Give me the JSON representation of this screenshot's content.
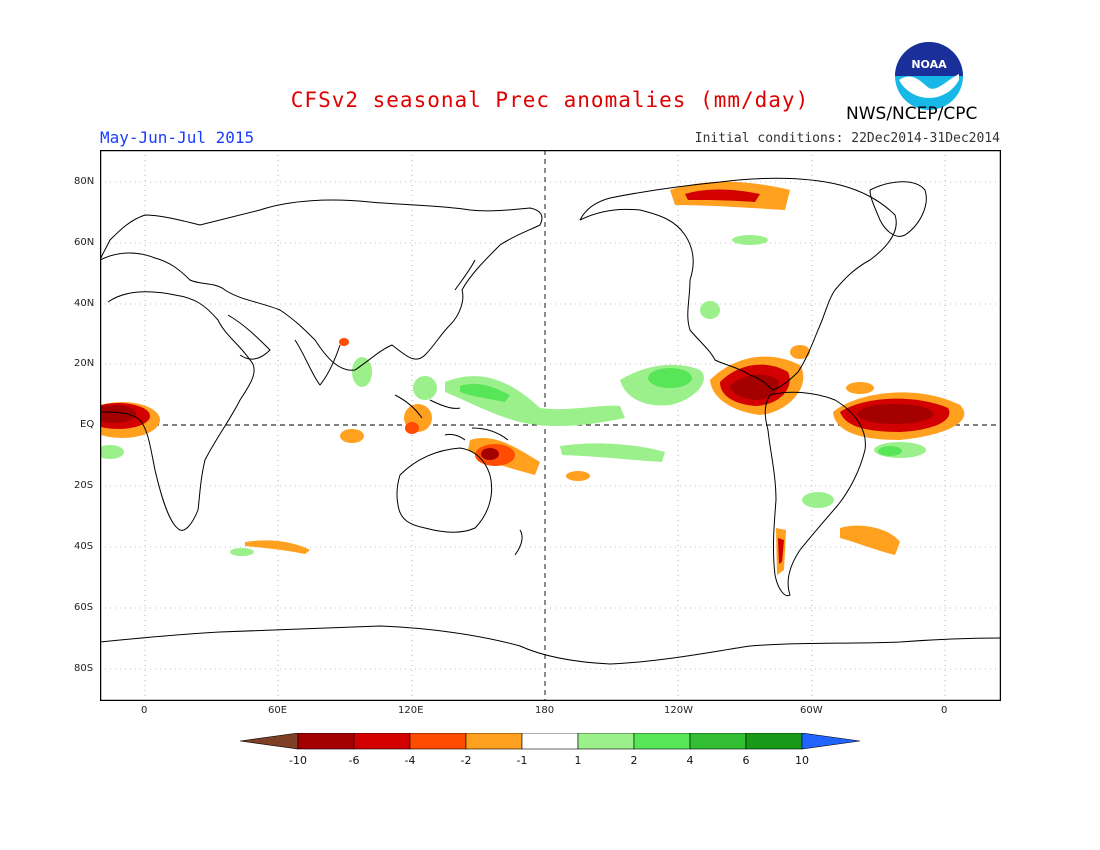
{
  "title": "CFSv2 seasonal Prec anomalies (mm/day)",
  "period": "May-Jun-Jul 2015",
  "initial_conditions": "Initial conditions: 22Dec2014-31Dec2014",
  "organization": "NWS/NCEP/CPC",
  "logo_text": "NOAA",
  "map": {
    "lat_labels": [
      "80N",
      "60N",
      "40N",
      "20N",
      "EQ",
      "20S",
      "40S",
      "60S",
      "80S"
    ],
    "lon_labels": [
      "0",
      "60E",
      "120E",
      "180",
      "120W",
      "60W",
      "0"
    ],
    "projection": "cylindrical",
    "grid": "dotted",
    "anomaly_regions": [
      {
        "category": "dry_strong",
        "region": "Eastern tropical Pacific near Central America"
      },
      {
        "category": "dry_strong",
        "region": "Tropical Atlantic north of Brazil"
      },
      {
        "category": "dry_strong",
        "region": "Gulf of Guinea, west Africa coast"
      },
      {
        "category": "dry_moderate",
        "region": "Southwest Pacific near Solomon Islands"
      },
      {
        "category": "dry_light",
        "region": "Maritime Continent / Philippines"
      },
      {
        "category": "dry_light",
        "region": "Southern Chile"
      },
      {
        "category": "dry_light",
        "region": "South Atlantic off Argentina"
      },
      {
        "category": "wet_light",
        "region": "Central North Pacific ITCZ"
      },
      {
        "category": "wet_light",
        "region": "Western tropical Pacific"
      },
      {
        "category": "wet_light",
        "region": "South Pacific convergence band"
      },
      {
        "category": "wet_light",
        "region": "Equatorial Atlantic south of equator"
      }
    ]
  },
  "colorbar": {
    "labels": [
      "-10",
      "-6",
      "-4",
      "-2",
      "-1",
      "1",
      "2",
      "4",
      "6",
      "10"
    ],
    "colors": [
      "#7f3f24",
      "#a50000",
      "#d20000",
      "#ff4c00",
      "#ffa01e",
      "#ffffff",
      "#9bf08c",
      "#57e657",
      "#32be32",
      "#189a18",
      "#2264ff"
    ]
  }
}
